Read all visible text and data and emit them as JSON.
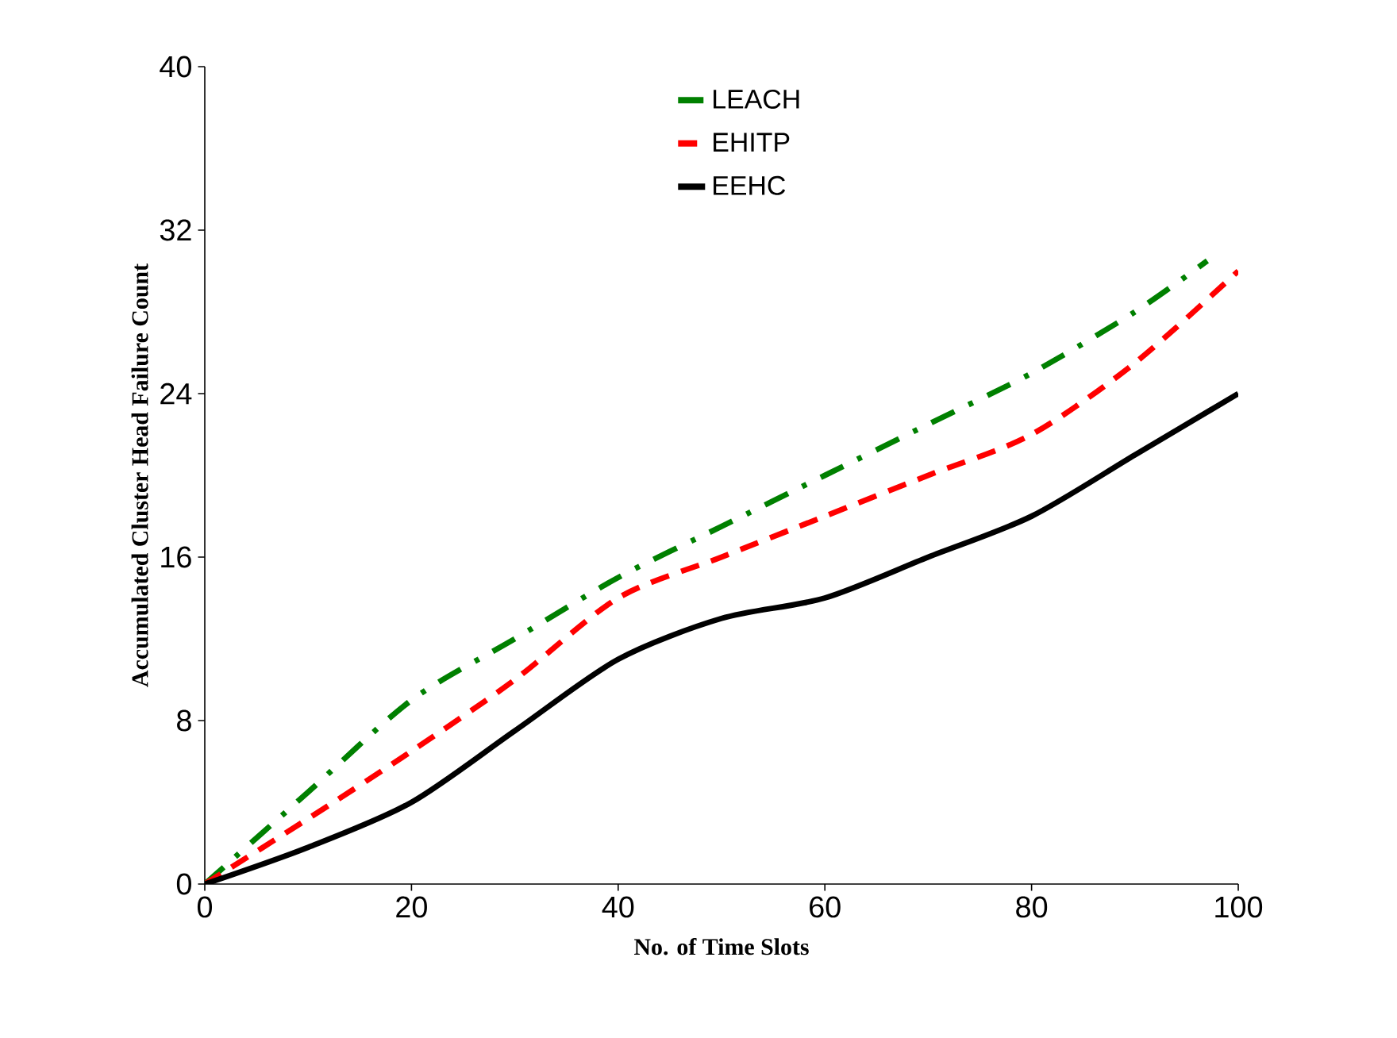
{
  "chart_data": {
    "type": "line",
    "xlabel": "No. of Time Slots",
    "ylabel": "Accumulated Cluster Head Failure Count",
    "xlim": [
      0,
      100
    ],
    "xticks": [
      0,
      20,
      40,
      60,
      80,
      100
    ],
    "ylim": [
      0,
      40
    ],
    "yticks": [
      0,
      8,
      16,
      24,
      32,
      40
    ],
    "grid": false,
    "legend": "top",
    "marker": "none",
    "series": [
      {
        "name": "LEACH",
        "color": "#008000",
        "line_style": "dashdot",
        "x": [
          0,
          10,
          20,
          30,
          40,
          50,
          60,
          70,
          80,
          90,
          97
        ],
        "values": [
          0,
          4.5,
          9,
          12,
          15,
          17.5,
          20,
          22.5,
          25,
          28,
          30.5
        ]
      },
      {
        "name": "EHITP",
        "color": "#ff0000",
        "line_style": "dashed",
        "x": [
          0,
          10,
          20,
          30,
          40,
          50,
          60,
          70,
          80,
          90,
          100
        ],
        "values": [
          0,
          3.2,
          6.5,
          10,
          14,
          16,
          18,
          20,
          22,
          25.5,
          30
        ]
      },
      {
        "name": "EEHC",
        "color": "#000000",
        "line_style": "solid",
        "x": [
          0,
          10,
          20,
          30,
          40,
          50,
          60,
          70,
          80,
          90,
          100
        ],
        "values": [
          0,
          1.8,
          4,
          7.5,
          11,
          13,
          14,
          16,
          18,
          21,
          24
        ]
      }
    ]
  }
}
